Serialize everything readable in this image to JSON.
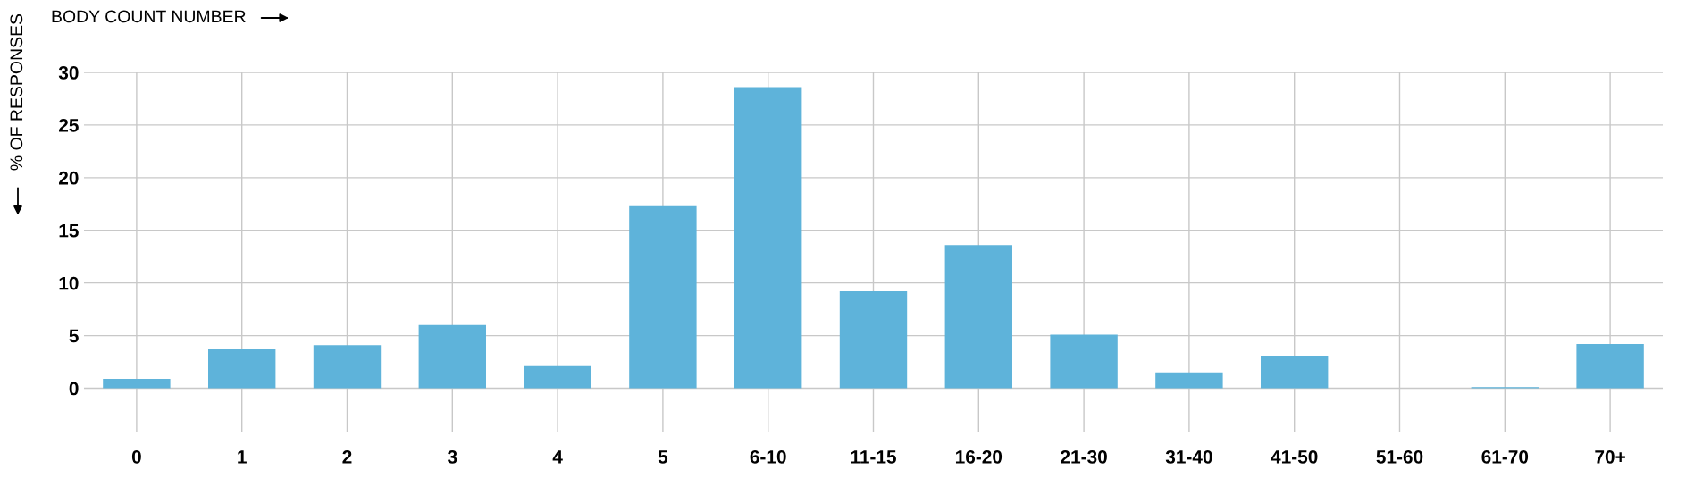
{
  "chart_data": {
    "type": "bar",
    "xlabel": "BODY COUNT NUMBER",
    "ylabel": "% OF RESPONSES",
    "categories": [
      "0",
      "1",
      "2",
      "3",
      "4",
      "5",
      "6-10",
      "11-15",
      "16-20",
      "21-30",
      "31-40",
      "41-50",
      "51-60",
      "61-70",
      "70+"
    ],
    "values": [
      0.9,
      3.7,
      4.1,
      6.0,
      2.1,
      17.3,
      28.6,
      9.2,
      13.6,
      5.1,
      1.5,
      3.1,
      0,
      0.1,
      4.2
    ],
    "color": "#5eb3da",
    "ylim": [
      -4.2,
      30
    ],
    "yticks": [
      0,
      5,
      10,
      15,
      20,
      25,
      30
    ],
    "grid": true
  }
}
